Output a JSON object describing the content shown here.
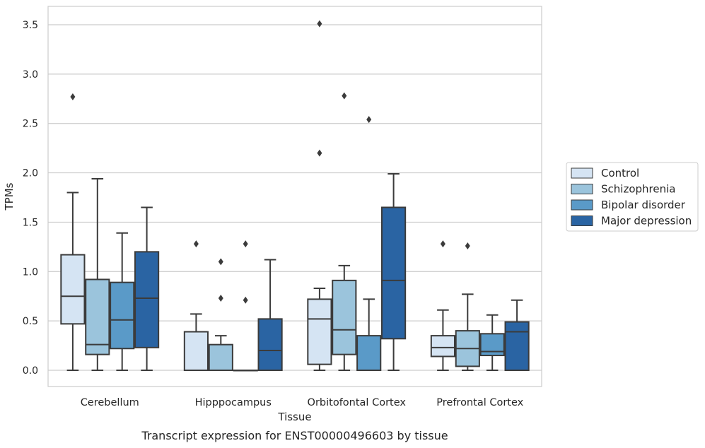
{
  "chart_data": {
    "type": "box",
    "xlabel": "Tissue",
    "ylabel": "TPMs",
    "caption": "Transcript expression for ENST00000496603 by tissue",
    "ylim": [
      -0.17,
      3.7
    ],
    "yticks": [
      0.0,
      0.5,
      1.0,
      1.5,
      2.0,
      2.5,
      3.0,
      3.5
    ],
    "ytick_labels": [
      "0.0",
      "0.5",
      "1.0",
      "1.5",
      "2.0",
      "2.5",
      "3.0",
      "3.5"
    ],
    "grid": "horizontal",
    "legend_position": "right",
    "categories": [
      "Cerebellum",
      "Hipppocampus",
      "Orbitofontal Cortex",
      "Prefrontal Cortex"
    ],
    "series": [
      {
        "name": "Control",
        "color": "#d5e4f3",
        "boxes": [
          {
            "whisker_low": 0.0,
            "q1": 0.47,
            "median": 0.75,
            "q3": 1.17,
            "whisker_high": 1.8,
            "outliers": [
              2.77
            ]
          },
          {
            "whisker_low": 0.0,
            "q1": 0.0,
            "median": 0.0,
            "q3": 0.39,
            "whisker_high": 0.57,
            "outliers": [
              1.28
            ]
          },
          {
            "whisker_low": 0.0,
            "q1": 0.06,
            "median": 0.52,
            "q3": 0.72,
            "whisker_high": 0.83,
            "outliers": [
              2.2,
              3.51
            ]
          },
          {
            "whisker_low": 0.0,
            "q1": 0.14,
            "median": 0.23,
            "q3": 0.35,
            "whisker_high": 0.61,
            "outliers": [
              1.28
            ]
          }
        ]
      },
      {
        "name": "Schizophrenia",
        "color": "#9bc4dc",
        "boxes": [
          {
            "whisker_low": 0.0,
            "q1": 0.16,
            "median": 0.26,
            "q3": 0.92,
            "whisker_high": 1.94,
            "outliers": []
          },
          {
            "whisker_low": 0.0,
            "q1": 0.0,
            "median": 0.0,
            "q3": 0.26,
            "whisker_high": 0.35,
            "outliers": [
              0.73,
              1.1
            ]
          },
          {
            "whisker_low": 0.0,
            "q1": 0.16,
            "median": 0.41,
            "q3": 0.91,
            "whisker_high": 1.06,
            "outliers": [
              2.78
            ]
          },
          {
            "whisker_low": 0.0,
            "q1": 0.04,
            "median": 0.22,
            "q3": 0.4,
            "whisker_high": 0.77,
            "outliers": [
              1.26
            ]
          }
        ]
      },
      {
        "name": "Bipolar disorder",
        "color": "#5a9ac8",
        "boxes": [
          {
            "whisker_low": 0.0,
            "q1": 0.22,
            "median": 0.51,
            "q3": 0.89,
            "whisker_high": 1.39,
            "outliers": []
          },
          {
            "whisker_low": 0.0,
            "q1": 0.0,
            "median": 0.0,
            "q3": 0.0,
            "whisker_high": 0.0,
            "outliers": [
              0.71,
              1.28
            ]
          },
          {
            "whisker_low": 0.0,
            "q1": 0.0,
            "median": 0.0,
            "q3": 0.35,
            "whisker_high": 0.72,
            "outliers": [
              2.54
            ]
          },
          {
            "whisker_low": 0.0,
            "q1": 0.15,
            "median": 0.19,
            "q3": 0.37,
            "whisker_high": 0.56,
            "outliers": []
          }
        ]
      },
      {
        "name": "Major depression",
        "color": "#2a64a3",
        "boxes": [
          {
            "whisker_low": 0.0,
            "q1": 0.23,
            "median": 0.73,
            "q3": 1.2,
            "whisker_high": 1.65,
            "outliers": []
          },
          {
            "whisker_low": 0.0,
            "q1": 0.0,
            "median": 0.2,
            "q3": 0.52,
            "whisker_high": 1.12,
            "outliers": []
          },
          {
            "whisker_low": 0.0,
            "q1": 0.32,
            "median": 0.91,
            "q3": 1.65,
            "whisker_high": 1.99,
            "outliers": []
          },
          {
            "whisker_low": 0.0,
            "q1": 0.0,
            "median": 0.39,
            "q3": 0.49,
            "whisker_high": 0.71,
            "outliers": []
          }
        ]
      }
    ]
  }
}
